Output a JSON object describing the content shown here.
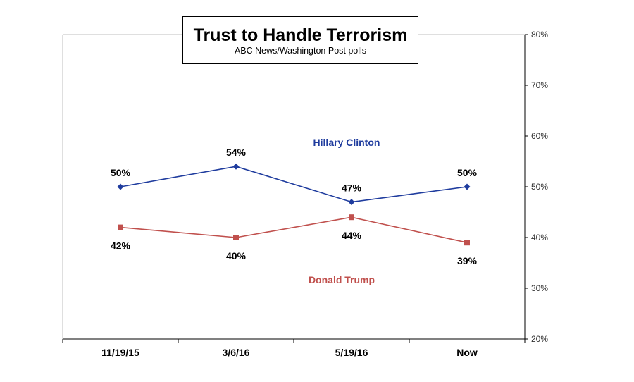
{
  "chart_data": {
    "type": "line",
    "title": "Trust to Handle Terrorism",
    "subtitle": "ABC News/Washington  Post polls",
    "categories": [
      "11/19/15",
      "3/6/16",
      "5/19/16",
      "Now"
    ],
    "ylim": [
      20,
      80
    ],
    "yticks": [
      "20%",
      "30%",
      "40%",
      "50%",
      "60%",
      "70%",
      "80%"
    ],
    "ytick_values": [
      20,
      30,
      40,
      50,
      60,
      70,
      80
    ],
    "y_axis_position": "right",
    "grid": false,
    "series": [
      {
        "name": "Hillary Clinton",
        "values": [
          50,
          54,
          47,
          50
        ],
        "data_labels": [
          "50%",
          "54%",
          "47%",
          "50%"
        ],
        "color": "#1f3c9e",
        "marker": "diamond",
        "label_side": "above"
      },
      {
        "name": "Donald Trump",
        "values": [
          42,
          40,
          44,
          39
        ],
        "data_labels": [
          "42%",
          "40%",
          "44%",
          "39%"
        ],
        "color": "#c0504d",
        "marker": "square",
        "label_side": "below"
      }
    ]
  }
}
